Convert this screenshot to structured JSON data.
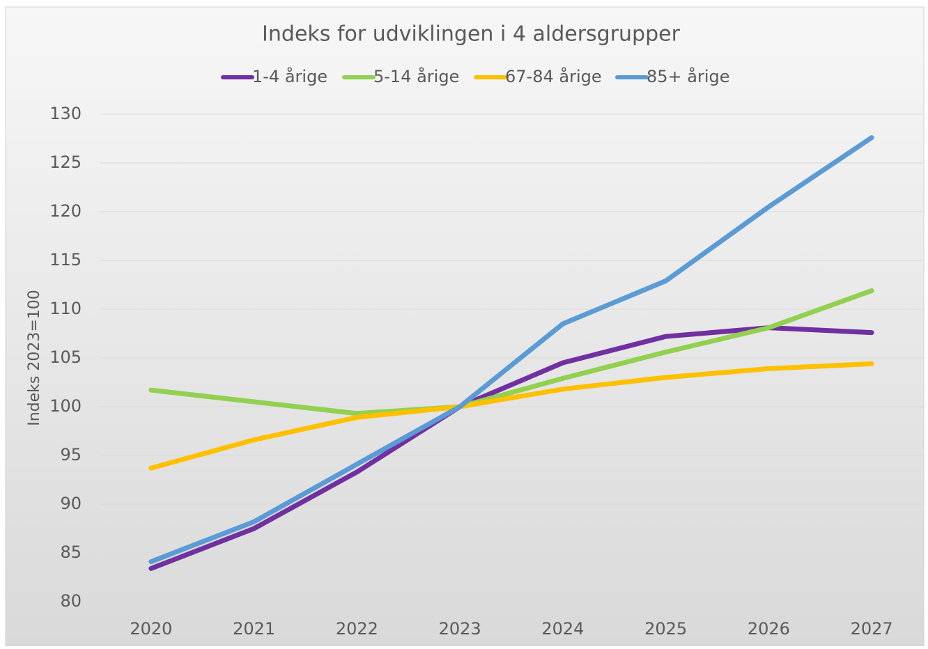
{
  "chart_data": {
    "type": "line",
    "title": "Indeks for udviklingen i 4 aldersgrupper",
    "y_label": "Indeks  2023=100",
    "categories": [
      "2020",
      "2021",
      "2022",
      "2023",
      "2024",
      "2025",
      "2026",
      "2027"
    ],
    "series": [
      {
        "name": "1-4 årige",
        "color": "#7030a0",
        "values": [
          83.4,
          87.5,
          93.3,
          100,
          104.5,
          107.2,
          108.1,
          107.6
        ]
      },
      {
        "name": "5-14 årige",
        "color": "#92d050",
        "values": [
          101.7,
          100.5,
          99.3,
          100,
          102.9,
          105.6,
          108.1,
          111.9
        ]
      },
      {
        "name": "67-84 årige",
        "color": "#ffc000",
        "values": [
          93.7,
          96.6,
          98.9,
          100,
          101.8,
          103,
          103.9,
          104.4
        ]
      },
      {
        "name": "85+ årige",
        "color": "#5b9bd5",
        "values": [
          84.1,
          88.2,
          94.1,
          100,
          108.5,
          112.9,
          120.5,
          127.6
        ]
      }
    ],
    "ylim": [
      80,
      130
    ],
    "yticks": [
      80,
      85,
      90,
      95,
      100,
      105,
      110,
      115,
      120,
      125,
      130
    ],
    "grid": true,
    "legend": "top"
  }
}
